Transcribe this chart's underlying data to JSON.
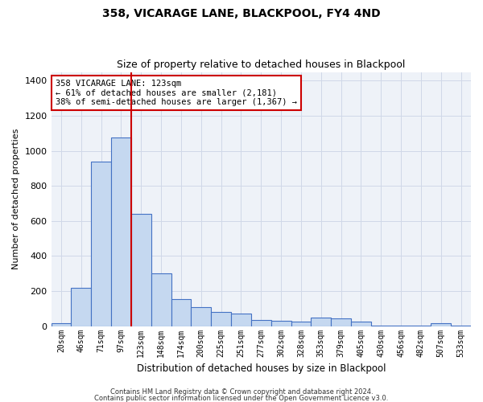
{
  "title1": "358, VICARAGE LANE, BLACKPOOL, FY4 4ND",
  "title2": "Size of property relative to detached houses in Blackpool",
  "xlabel": "Distribution of detached houses by size in Blackpool",
  "ylabel": "Number of detached properties",
  "categories": [
    "20sqm",
    "46sqm",
    "71sqm",
    "97sqm",
    "123sqm",
    "148sqm",
    "174sqm",
    "200sqm",
    "225sqm",
    "251sqm",
    "277sqm",
    "302sqm",
    "328sqm",
    "353sqm",
    "379sqm",
    "405sqm",
    "430sqm",
    "456sqm",
    "482sqm",
    "507sqm",
    "533sqm"
  ],
  "values": [
    18,
    220,
    940,
    1075,
    640,
    300,
    155,
    110,
    80,
    70,
    35,
    30,
    28,
    50,
    45,
    28,
    5,
    5,
    3,
    18,
    3
  ],
  "bar_color": "#c5d8f0",
  "bar_edge_color": "#4472c4",
  "red_line_index": 4,
  "annotation_line1": "358 VICARAGE LANE: 123sqm",
  "annotation_line2": "← 61% of detached houses are smaller (2,181)",
  "annotation_line3": "38% of semi-detached houses are larger (1,367) →",
  "annotation_box_color": "#ffffff",
  "annotation_box_edge_color": "#cc0000",
  "ylim": [
    0,
    1450
  ],
  "yticks": [
    0,
    200,
    400,
    600,
    800,
    1000,
    1200,
    1400
  ],
  "grid_color": "#d0d8e8",
  "background_color": "#eef2f8",
  "footer1": "Contains HM Land Registry data © Crown copyright and database right 2024.",
  "footer2": "Contains public sector information licensed under the Open Government Licence v3.0."
}
